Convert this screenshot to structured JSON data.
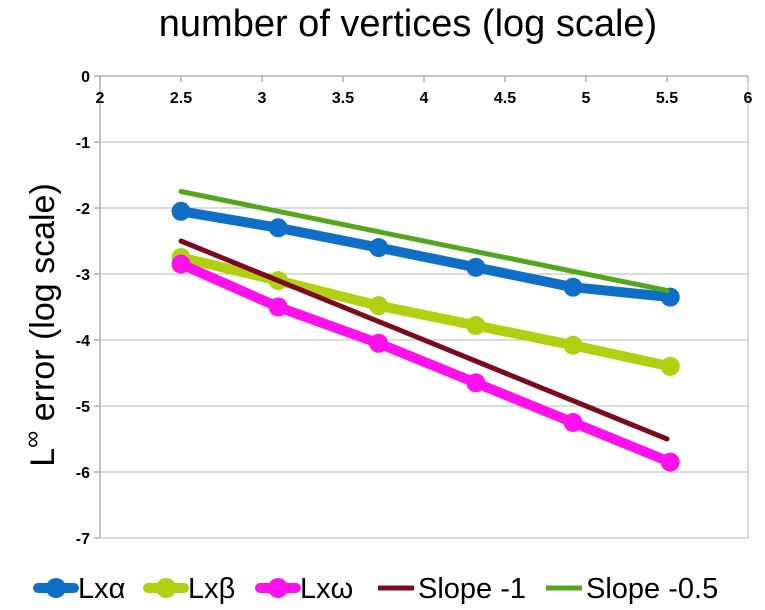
{
  "chart_data": {
    "type": "line",
    "title": "number of vertices (log scale)",
    "xlabel": "",
    "ylabel_main": "L",
    "ylabel_sup": "∞",
    "ylabel_rest": " error (log scale)",
    "xlim": [
      2,
      6
    ],
    "ylim": [
      -7,
      0
    ],
    "x_ticks": [
      "2",
      "2.5",
      "3",
      "3.5",
      "4",
      "4.5",
      "5",
      "5.5",
      "6"
    ],
    "y_ticks": [
      "0",
      "-1",
      "-2",
      "-3",
      "-4",
      "-5",
      "-6",
      "-7"
    ],
    "x_tick_values": [
      2,
      2.5,
      3,
      3.5,
      4,
      4.5,
      5,
      5.5,
      6
    ],
    "y_tick_values": [
      0,
      -1,
      -2,
      -3,
      -4,
      -5,
      -6,
      -7
    ],
    "grid": true,
    "x_axis_position": "top",
    "legend_position": "bottom",
    "series": [
      {
        "name": "Lxα",
        "color": "#0f6fc6",
        "markers": true,
        "x": [
          2.5,
          3.1,
          3.72,
          4.32,
          4.92,
          5.52
        ],
        "y": [
          -2.05,
          -2.3,
          -2.6,
          -2.9,
          -3.2,
          -3.35
        ]
      },
      {
        "name": "Lxβ",
        "color": "#b0d010",
        "markers": true,
        "x": [
          2.5,
          3.1,
          3.72,
          4.32,
          4.92,
          5.52
        ],
        "y": [
          -2.75,
          -3.1,
          -3.48,
          -3.78,
          -4.08,
          -4.4
        ]
      },
      {
        "name": "Lxω",
        "color": "#ff11ee",
        "markers": true,
        "x": [
          2.5,
          3.1,
          3.72,
          4.32,
          4.92,
          5.52
        ],
        "y": [
          -2.85,
          -3.5,
          -4.05,
          -4.65,
          -5.25,
          -5.85
        ]
      },
      {
        "name": "Slope -1",
        "color": "#7b0a1e",
        "markers": false,
        "x": [
          2.5,
          5.5
        ],
        "y": [
          -2.5,
          -5.5
        ]
      },
      {
        "name": "Slope -0.5",
        "color": "#56a51e",
        "markers": false,
        "x": [
          2.5,
          5.5
        ],
        "y": [
          -1.75,
          -3.25
        ]
      }
    ]
  }
}
